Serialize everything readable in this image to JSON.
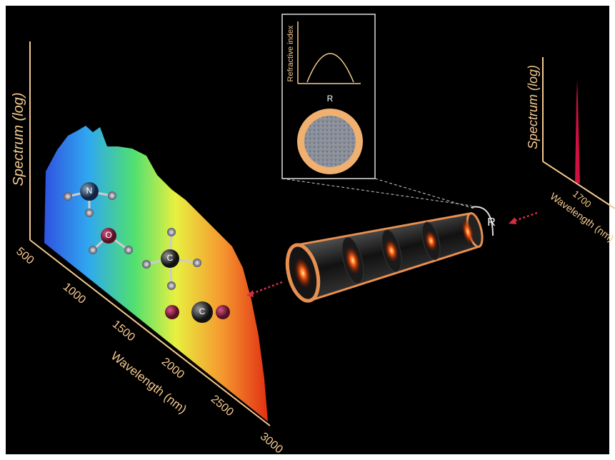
{
  "left_panel": {
    "y_label": "Spectrum (log)",
    "x_ticks": [
      "500",
      "1000",
      "1500",
      "2000",
      "2500",
      "3000"
    ],
    "x_label": "Wavelength (nm)",
    "molecules": [
      {
        "atom": "N"
      },
      {
        "atom": "O"
      },
      {
        "atom": "C"
      },
      {
        "atom": "C"
      }
    ]
  },
  "inset": {
    "y_label": "Refractive index",
    "radius_label": "R"
  },
  "fiber": {
    "radius_label": "R"
  },
  "right_panel": {
    "y_label": "Spectrum (log)",
    "x_tick": "1700",
    "x_label": "Wavelength (nm)"
  }
}
